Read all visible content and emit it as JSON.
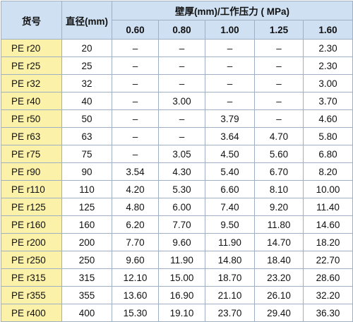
{
  "table": {
    "headers": {
      "code": "货号",
      "diameter": "直径(mm)",
      "group": "壁厚(mm)/工作压力 ( MPa)",
      "pressures": [
        "0.60",
        "0.80",
        "1.00",
        "1.25",
        "1.60"
      ]
    },
    "rows": [
      {
        "code": "PE r20",
        "dn": "20",
        "values": [
          "–",
          "–",
          "–",
          "–",
          "2.30"
        ]
      },
      {
        "code": "PE r25",
        "dn": "25",
        "values": [
          "–",
          "–",
          "–",
          "–",
          "2.30"
        ]
      },
      {
        "code": "PE r32",
        "dn": "32",
        "values": [
          "–",
          "–",
          "–",
          "–",
          "3.00"
        ]
      },
      {
        "code": "PE r40",
        "dn": "40",
        "values": [
          "–",
          "3.00",
          "–",
          "–",
          "3.70"
        ]
      },
      {
        "code": "PE r50",
        "dn": "50",
        "values": [
          "–",
          "–",
          "3.79",
          "–",
          "4.60"
        ]
      },
      {
        "code": "PE r63",
        "dn": "63",
        "values": [
          "–",
          "–",
          "3.64",
          "4.70",
          "5.80"
        ]
      },
      {
        "code": "PE r75",
        "dn": "75",
        "values": [
          "–",
          "3.05",
          "4.50",
          "5.60",
          "6.80"
        ]
      },
      {
        "code": "PE r90",
        "dn": "90",
        "values": [
          "3.54",
          "4.30",
          "5.40",
          "6.70",
          "8.20"
        ]
      },
      {
        "code": "PE r110",
        "dn": "110",
        "values": [
          "4.20",
          "5.30",
          "6.60",
          "8.10",
          "10.00"
        ]
      },
      {
        "code": "PE r125",
        "dn": "125",
        "values": [
          "4.80",
          "6.00",
          "7.40",
          "9.20",
          "11.40"
        ]
      },
      {
        "code": "PE r160",
        "dn": "160",
        "values": [
          "6.20",
          "7.70",
          "9.50",
          "11.80",
          "14.60"
        ]
      },
      {
        "code": "PE r200",
        "dn": "200",
        "values": [
          "7.70",
          "9.60",
          "11.90",
          "14.70",
          "18.20"
        ]
      },
      {
        "code": "PE r250",
        "dn": "250",
        "values": [
          "9.60",
          "11.90",
          "14.80",
          "18.40",
          "22.70"
        ]
      },
      {
        "code": "PE r315",
        "dn": "315",
        "values": [
          "12.10",
          "15.00",
          "18.70",
          "23.20",
          "28.60"
        ]
      },
      {
        "code": "PE r355",
        "dn": "355",
        "values": [
          "13.60",
          "16.90",
          "21.10",
          "26.10",
          "32.20"
        ]
      },
      {
        "code": "PE r400",
        "dn": "400",
        "values": [
          "15.30",
          "19.10",
          "23.70",
          "29.40",
          "36.30"
        ]
      }
    ]
  },
  "colors": {
    "header_bg": "#cfe0f2",
    "code_bg": "#fbf1a8",
    "grid": "#9fb0c4"
  }
}
